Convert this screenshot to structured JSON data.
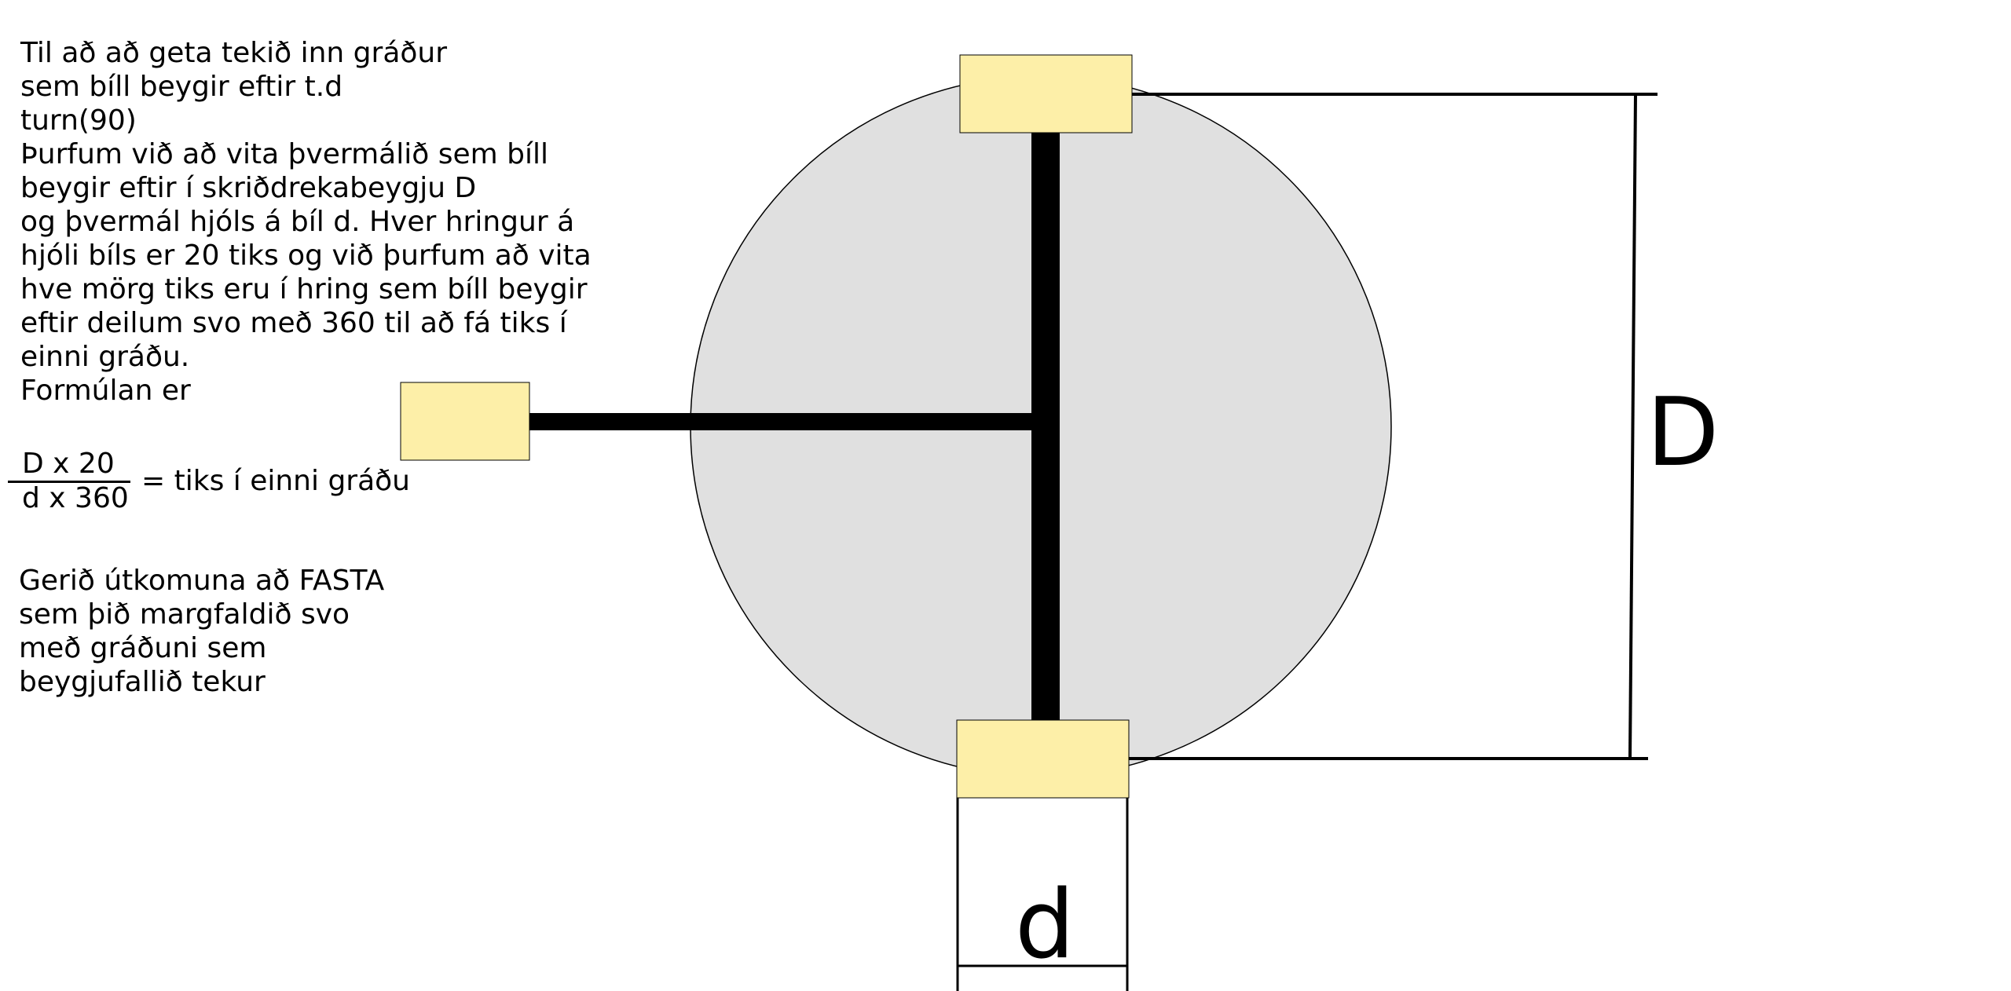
{
  "explanation": {
    "intro": "Til að að geta tekið inn gráður\nsem bíll beygir eftir t.d\nturn(90)\nÞurfum við að vita þvermálið sem bíll\nbeygir eftir í skriðdrekabeygju D\nog þvermál hjóls á bíl d. Hver hringur á\nhjóli bíls er 20 tiks og við þurfum að vita\nhve mörg tiks eru í hring sem bíll beygir\neftir deilum svo með 360 til að fá tiks í\neinni gráðu.\nFormúlan er",
    "formula": {
      "numerator": "D x 20",
      "denominator": "d x 360",
      "result": "= tiks í einni gráðu"
    },
    "outro": "Gerið útkomuna að FASTA\nsem þið margfaldið svo\nmeð gráðuni sem\nbeygjufallið tekur"
  },
  "diagram": {
    "turn_diameter_label": "D",
    "wheel_diameter_label": "d",
    "colors": {
      "circle_fill": "#e0e0e0",
      "wheel_fill": "#fdefa8",
      "axle": "#000000"
    }
  }
}
